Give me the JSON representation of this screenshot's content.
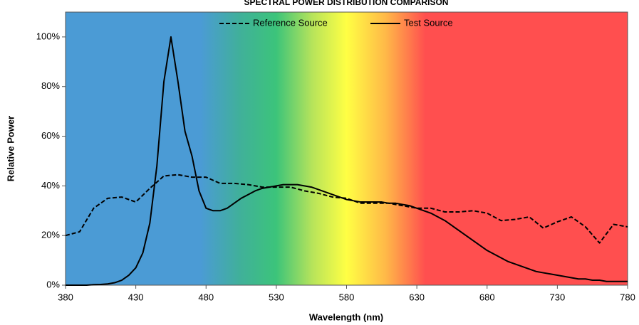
{
  "chart_data": {
    "type": "line",
    "title": "SPECTRAL POWER DISTRIBUTION COMPARISON",
    "x_label": "Wavelength (nm)",
    "y_label": "Relative Power",
    "xlim": [
      380,
      780
    ],
    "xticks": [
      380,
      430,
      480,
      530,
      580,
      630,
      680,
      730,
      780
    ],
    "ylim": [
      0,
      110
    ],
    "yticks": [
      {
        "value": 0,
        "label": "0%"
      },
      {
        "value": 20,
        "label": "20%"
      },
      {
        "value": 40,
        "label": "40%"
      },
      {
        "value": 60,
        "label": "60%"
      },
      {
        "value": 80,
        "label": "80%"
      },
      {
        "value": 100,
        "label": "100%"
      }
    ],
    "legend": "top",
    "series": [
      {
        "name": "Reference Source",
        "color": "#000000",
        "dash": "dashed",
        "x": [
          380,
          390,
          400,
          410,
          420,
          430,
          440,
          450,
          460,
          470,
          480,
          490,
          500,
          510,
          520,
          530,
          540,
          550,
          560,
          570,
          580,
          590,
          600,
          610,
          620,
          630,
          640,
          650,
          660,
          670,
          680,
          690,
          700,
          710,
          720,
          730,
          740,
          750,
          760,
          770,
          780
        ],
        "values": [
          20,
          21.5,
          31,
          35,
          35.5,
          33.5,
          39,
          44,
          44.5,
          43.5,
          43.5,
          41,
          41,
          40.5,
          39.5,
          39.5,
          39.5,
          38,
          37,
          35.5,
          35,
          33,
          33,
          33,
          32,
          31,
          31,
          29.5,
          29.5,
          30,
          29,
          26,
          26.5,
          27.5,
          23,
          25.5,
          27.5,
          23.5,
          17,
          24.5,
          23.5
        ]
      },
      {
        "name": "Test Source",
        "color": "#000000",
        "dash": "solid",
        "x": [
          380,
          385,
          390,
          395,
          400,
          405,
          410,
          415,
          420,
          425,
          430,
          435,
          440,
          445,
          450,
          455,
          460,
          465,
          470,
          475,
          480,
          485,
          490,
          495,
          500,
          505,
          510,
          515,
          520,
          525,
          530,
          535,
          540,
          545,
          550,
          555,
          560,
          565,
          570,
          575,
          580,
          585,
          590,
          595,
          600,
          605,
          610,
          615,
          620,
          625,
          630,
          635,
          640,
          645,
          650,
          655,
          660,
          665,
          670,
          675,
          680,
          685,
          690,
          695,
          700,
          705,
          710,
          715,
          720,
          725,
          730,
          735,
          740,
          745,
          750,
          755,
          760,
          765,
          770,
          775,
          780
        ],
        "values": [
          0,
          0,
          0,
          0,
          0.2,
          0.3,
          0.5,
          1,
          2,
          4,
          7,
          13,
          25,
          48,
          82,
          100,
          82,
          62,
          52,
          38,
          31,
          30,
          30,
          31,
          33,
          35,
          36.5,
          38,
          39,
          39.5,
          40,
          40.5,
          40.5,
          40.5,
          40,
          39.5,
          38.5,
          37.5,
          36.5,
          35.5,
          34.5,
          34,
          33.5,
          33.5,
          33.5,
          33.5,
          33,
          33,
          32.5,
          32,
          31,
          30,
          29,
          27.5,
          26,
          24,
          22,
          20,
          18,
          16,
          14,
          12.5,
          11,
          9.5,
          8.5,
          7.5,
          6.5,
          5.5,
          5,
          4.5,
          4,
          3.5,
          3,
          2.5,
          2.5,
          2,
          2,
          1.5,
          1.5,
          1.5,
          1.5
        ]
      }
    ]
  }
}
